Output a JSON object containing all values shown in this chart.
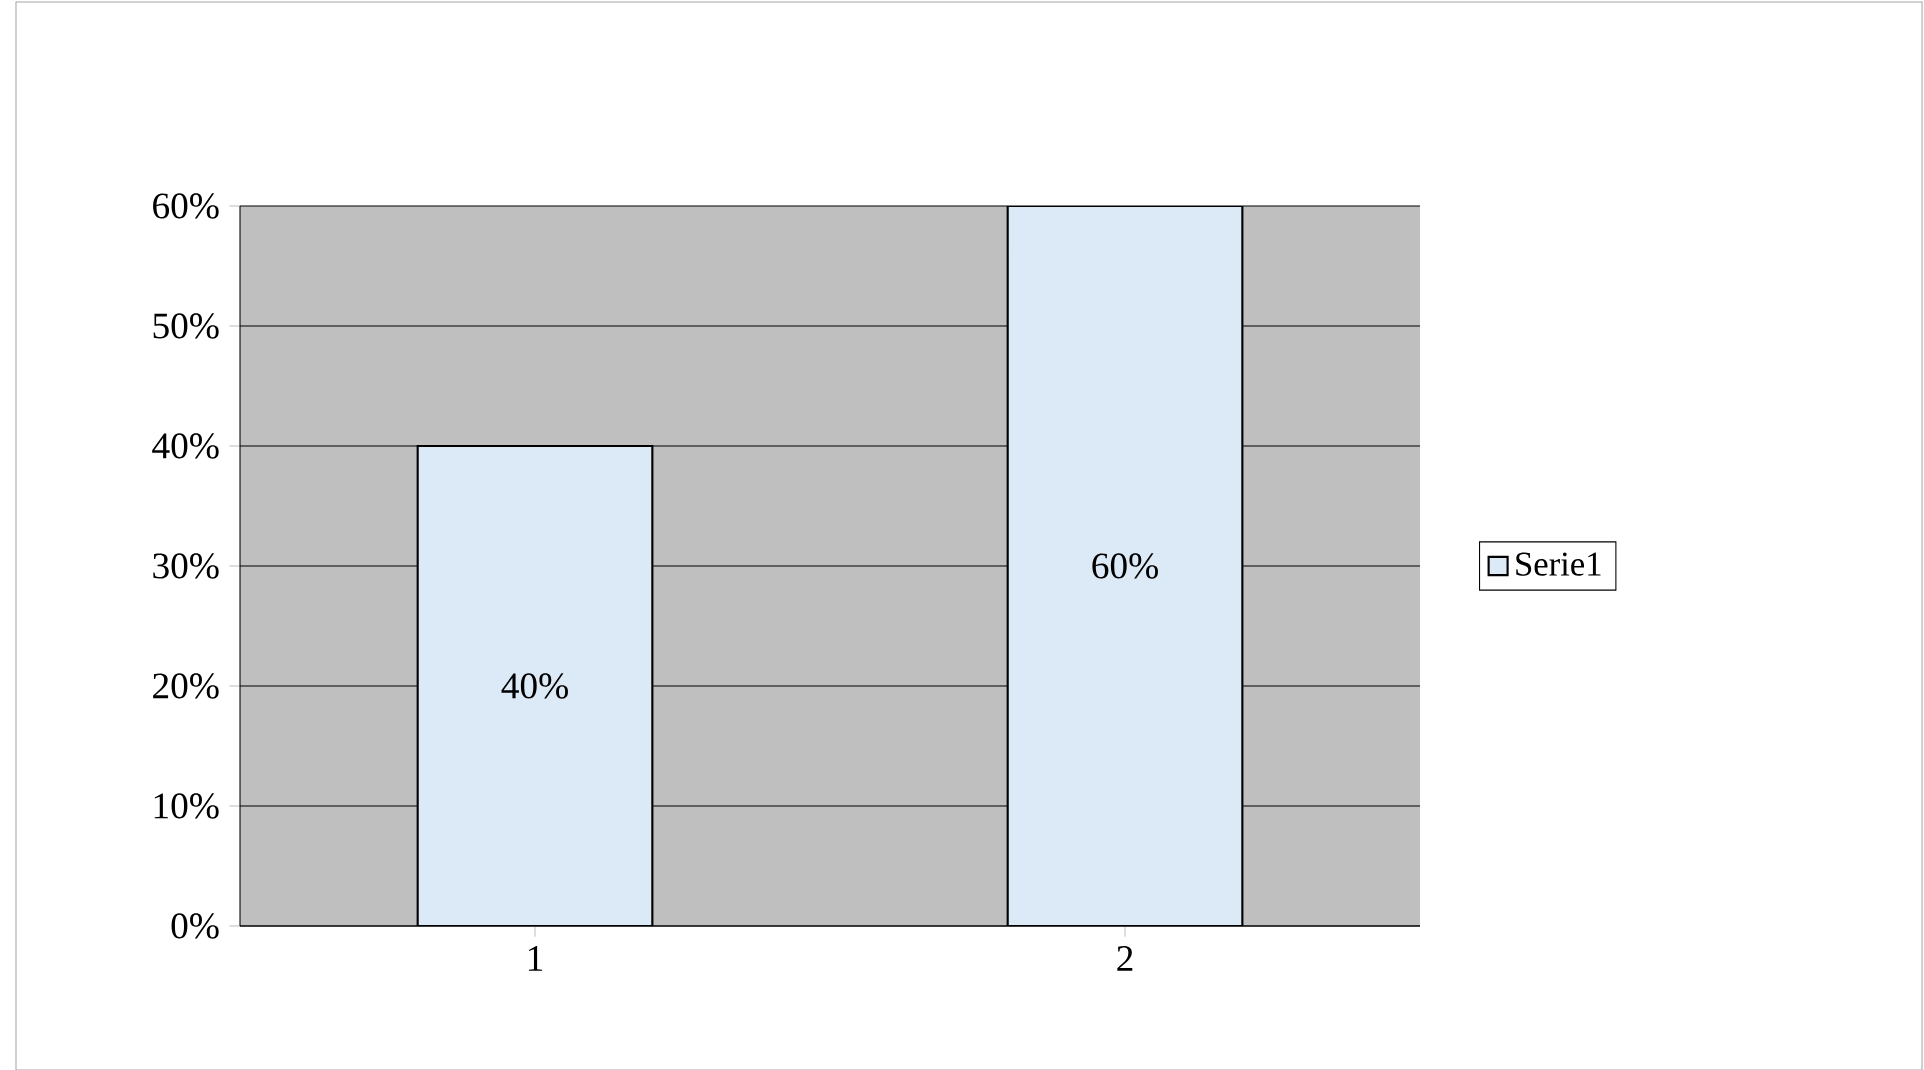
{
  "chart_data": {
    "type": "bar",
    "categories": [
      "1",
      "2"
    ],
    "series": [
      {
        "name": "Serie1",
        "color": "#dce9f7",
        "values": [
          40,
          60
        ]
      }
    ],
    "value_labels": [
      "40%",
      "60%"
    ],
    "ylim": [
      0,
      60
    ],
    "yticks": [
      {
        "value": 0,
        "label": "0%"
      },
      {
        "value": 10,
        "label": "10%"
      },
      {
        "value": 20,
        "label": "20%"
      },
      {
        "value": 30,
        "label": "30%"
      },
      {
        "value": 40,
        "label": "40%"
      },
      {
        "value": 50,
        "label": "50%"
      },
      {
        "value": 60,
        "label": "60%"
      }
    ],
    "grid": "y",
    "legend": "right"
  }
}
